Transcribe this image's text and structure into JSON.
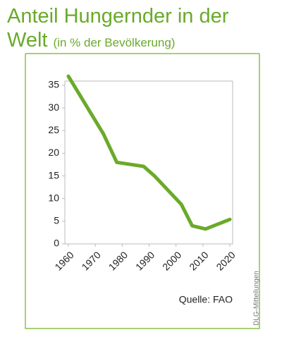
{
  "chart_data": {
    "type": "line",
    "title": "Anteil Hungernder in der Welt",
    "subtitle": "(in % der Bevölkerung)",
    "source": "Quelle: FAO",
    "credit": "DLG-Mitteilungen",
    "x": [
      1960,
      1973,
      1978,
      1988,
      1992,
      2002,
      2006,
      2011,
      2020
    ],
    "series": [
      {
        "name": "Anteil Hungernder",
        "color": "#6aaa2a",
        "values": [
          37,
          24.3,
          18,
          17.1,
          15,
          8.7,
          4,
          3.3,
          5.4
        ]
      }
    ],
    "xlim": [
      1960,
      2020
    ],
    "xticks": [
      1960,
      1970,
      1980,
      1990,
      2000,
      2010,
      2020
    ],
    "ylim": [
      0,
      35
    ],
    "yticks": [
      0,
      5,
      10,
      15,
      20,
      25,
      30,
      35
    ],
    "grid": false
  }
}
